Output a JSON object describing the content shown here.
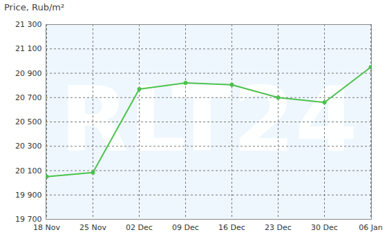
{
  "chart_data": {
    "type": "line",
    "title": "Price, Rub/m²",
    "categories": [
      "18 Nov",
      "25 Nov",
      "02 Dec",
      "09 Dec",
      "16 Dec",
      "23 Dec",
      "30 Dec",
      "06 Jan"
    ],
    "values": [
      20050,
      20085,
      20770,
      20820,
      20805,
      20700,
      20660,
      20950
    ],
    "color": "#4cc24c",
    "marker": "circle",
    "ylim": [
      19700,
      21300
    ],
    "yticks": [
      {
        "value": 19700,
        "label": "19 700"
      },
      {
        "value": 19900,
        "label": "19 900"
      },
      {
        "value": 20100,
        "label": "20 100"
      },
      {
        "value": 20300,
        "label": "20 300"
      },
      {
        "value": 20500,
        "label": "20 500"
      },
      {
        "value": 20700,
        "label": "20 700"
      },
      {
        "value": 20900,
        "label": "20 900"
      },
      {
        "value": 21100,
        "label": "21 100"
      },
      {
        "value": 21300,
        "label": "21 300"
      }
    ],
    "grid": true,
    "annotations": [
      "RLT24"
    ]
  }
}
